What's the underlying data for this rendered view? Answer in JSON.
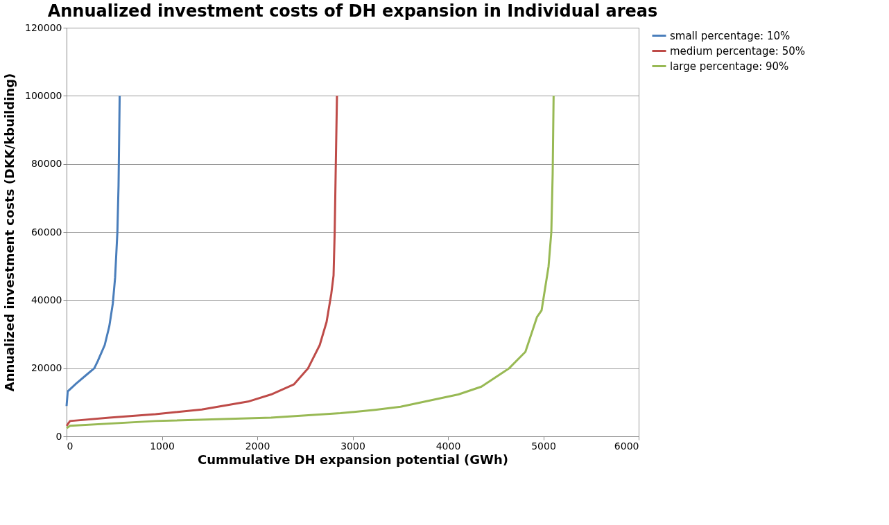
{
  "chart_data": {
    "type": "line",
    "title": "Annualized investment costs of DH expansion in Individual areas",
    "xlabel": "Cummulative DH expansion potential (GWh)",
    "ylabel": "Annualized investment costs (DKK/kbuilding)",
    "xlim": [
      0,
      6000
    ],
    "xticks": [
      0,
      1000,
      2000,
      3000,
      4000,
      5000,
      6000
    ],
    "ylim": [
      0,
      120000
    ],
    "yticks": [
      0,
      20000,
      40000,
      60000,
      80000,
      100000,
      120000
    ],
    "grid": "y",
    "legend": "right",
    "marker": "none",
    "line_style": "solid",
    "series": [
      {
        "name": "small percentage: 10%",
        "color": "#4a7ebb",
        "x": [
          0,
          12,
          100,
          206,
          291,
          327,
          400,
          448,
          485,
          509,
          533,
          545,
          557
        ],
        "values": [
          8900,
          13200,
          15500,
          18000,
          20000,
          22100,
          26800,
          32300,
          39000,
          46600,
          60000,
          73600,
          100000
        ]
      },
      {
        "name": "medium percentage: 50%",
        "color": "#be4b48",
        "x": [
          0,
          36,
          449,
          933,
          1418,
          1903,
          2145,
          2386,
          2533,
          2655,
          2727,
          2776,
          2800,
          2812,
          2824,
          2836
        ],
        "values": [
          3100,
          4500,
          5500,
          6500,
          7900,
          10200,
          12300,
          15300,
          20000,
          26800,
          33600,
          41800,
          47200,
          60000,
          80400,
          100000
        ]
      },
      {
        "name": "large percentage: 90%",
        "color": "#98b954",
        "x": [
          0,
          36,
          933,
          2145,
          2873,
          3236,
          3503,
          4109,
          4351,
          4642,
          4812,
          4933,
          4982,
          5055,
          5084,
          5098,
          5108
        ],
        "values": [
          2400,
          3100,
          4500,
          5500,
          6800,
          7800,
          8700,
          12300,
          14600,
          20000,
          24800,
          35000,
          37000,
          49900,
          60000,
          77000,
          100000
        ]
      }
    ]
  }
}
